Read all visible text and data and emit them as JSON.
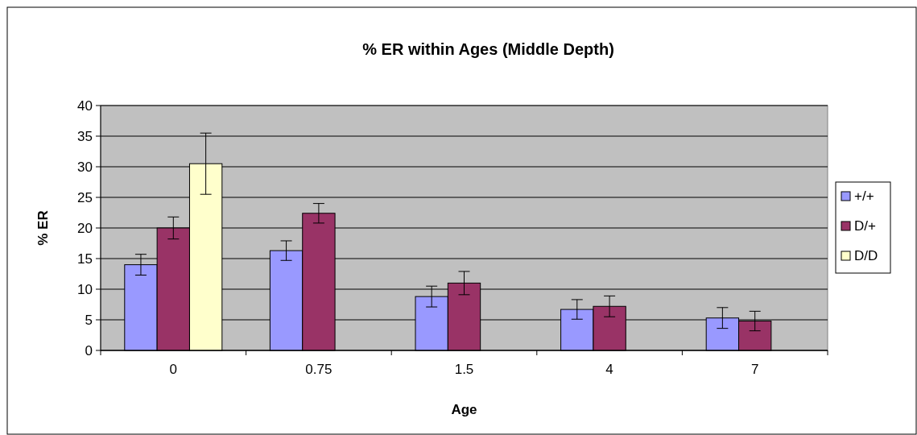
{
  "chart_data": {
    "type": "bar",
    "title": "% ER within Ages (Middle Depth)",
    "xlabel": "Age",
    "ylabel": "% ER",
    "categories": [
      "0",
      "0.75",
      "1.5",
      "4",
      "7"
    ],
    "series": [
      {
        "name": "+/+",
        "color": "#9999ff",
        "values": [
          14,
          16.3,
          8.8,
          6.7,
          5.3
        ],
        "errors": [
          1.7,
          1.6,
          1.7,
          1.6,
          1.7
        ]
      },
      {
        "name": "D/+",
        "color": "#993366",
        "values": [
          20,
          22.4,
          11,
          7.2,
          4.8
        ],
        "errors": [
          1.8,
          1.6,
          1.9,
          1.7,
          1.6
        ]
      },
      {
        "name": "D/D",
        "color": "#ffffcc",
        "values": [
          30.5,
          null,
          null,
          null,
          null
        ],
        "errors": [
          5,
          null,
          null,
          null,
          null
        ]
      }
    ],
    "ylim": [
      0,
      40
    ],
    "yticks": [
      0,
      5,
      10,
      15,
      20,
      25,
      30,
      35,
      40
    ],
    "grid": "y",
    "legend": "right"
  }
}
